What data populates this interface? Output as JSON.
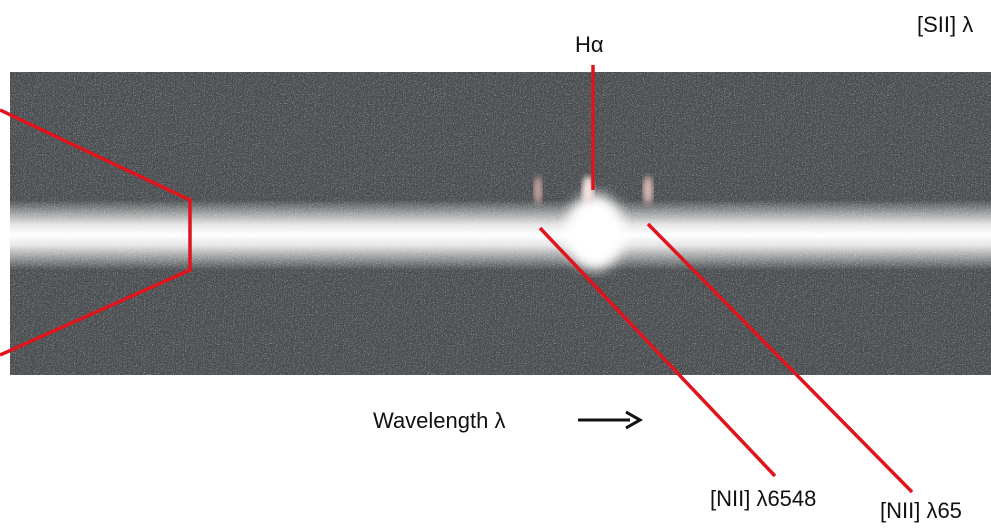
{
  "labels": {
    "sii": "[SII] λ",
    "halpha": "Hα",
    "wavelength": "Wavelength λ",
    "nii_6548": "[NII] λ6548",
    "nii_6584": "[NII] λ65"
  }
}
